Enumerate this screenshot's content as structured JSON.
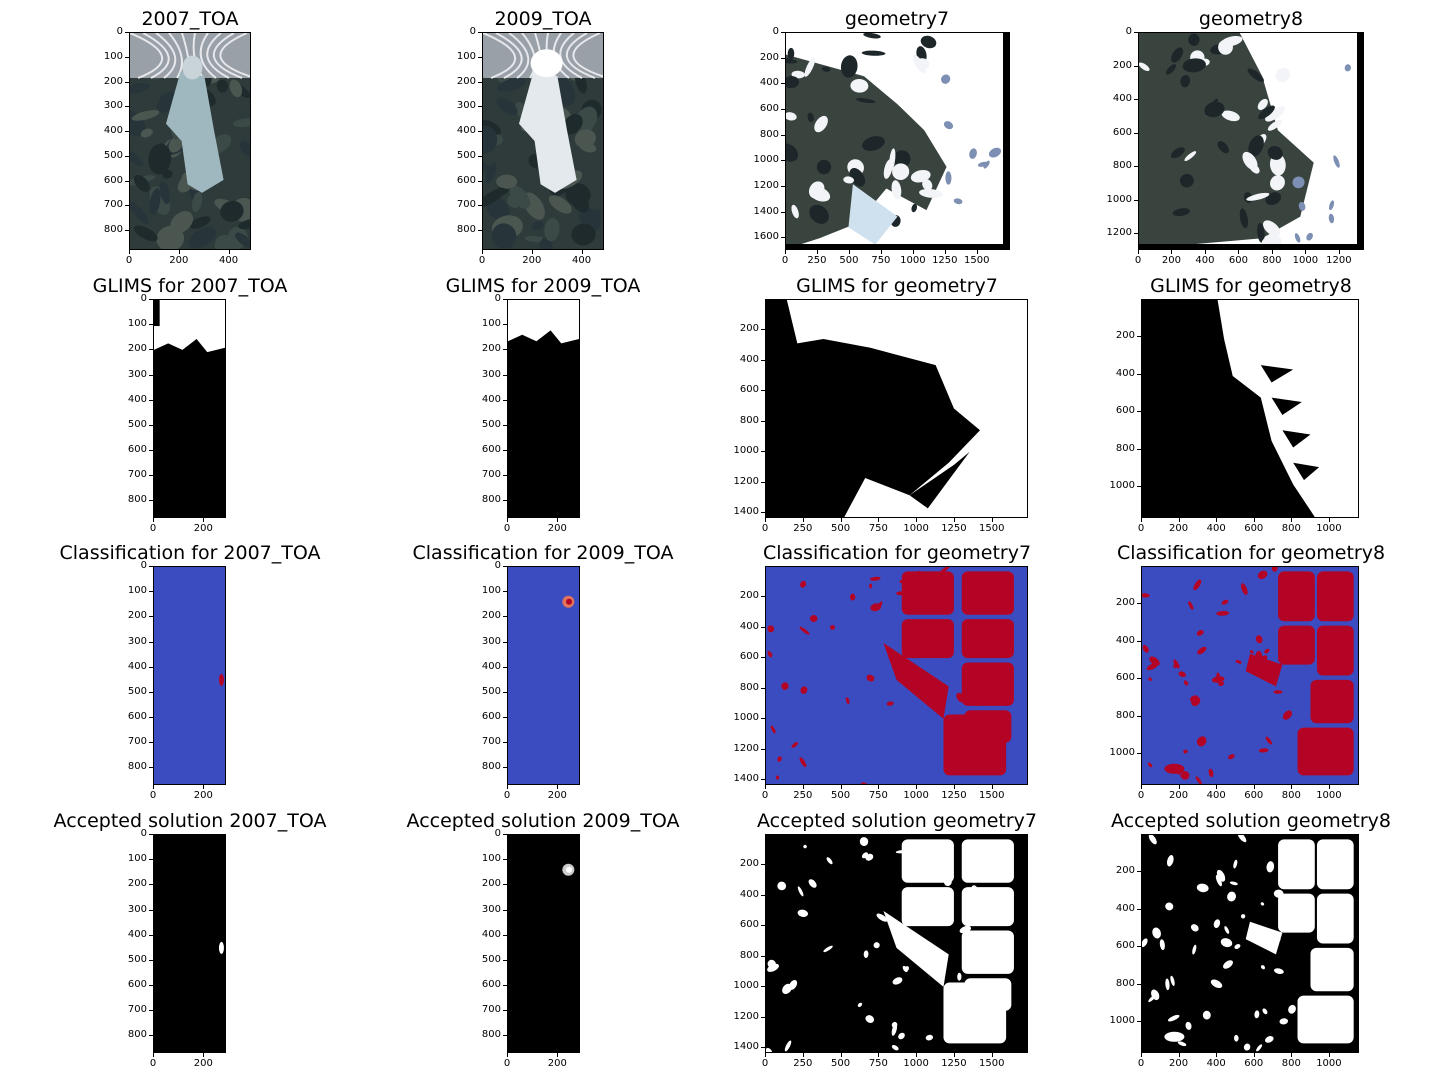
{
  "colors": {
    "class_blue": "#3b4cc0",
    "class_red": "#b40426",
    "mask_black": "#000000",
    "mask_white": "#ffffff"
  },
  "chart_data": [
    {
      "id": "p11",
      "type": "heatmap",
      "kind": "rgb-ice",
      "title": "2007_TOA",
      "xticks": [
        "0",
        "200",
        "400"
      ],
      "yticks": [
        "0",
        "100",
        "200",
        "300",
        "400",
        "500",
        "600",
        "700",
        "800"
      ],
      "xlim": [
        0,
        490
      ],
      "ylim": [
        880,
        0
      ]
    },
    {
      "id": "p12",
      "type": "heatmap",
      "kind": "rgb-ice-bright",
      "title": "2009_TOA",
      "xticks": [
        "0",
        "200",
        "400"
      ],
      "yticks": [
        "0",
        "100",
        "200",
        "300",
        "400",
        "500",
        "600",
        "700",
        "800"
      ],
      "xlim": [
        0,
        490
      ],
      "ylim": [
        880,
        0
      ]
    },
    {
      "id": "p13",
      "type": "heatmap",
      "kind": "rgb-snow",
      "title": "geometry7",
      "xticks": [
        "0",
        "250",
        "500",
        "750",
        "1000",
        "1250",
        "1500"
      ],
      "yticks": [
        "0",
        "200",
        "400",
        "600",
        "800",
        "1000",
        "1200",
        "1400",
        "1600"
      ],
      "xlim": [
        0,
        1760
      ],
      "ylim": [
        1700,
        0
      ]
    },
    {
      "id": "p14",
      "type": "heatmap",
      "kind": "rgb-snow-2",
      "title": "geometry8",
      "xticks": [
        "0",
        "200",
        "400",
        "600",
        "800",
        "1000",
        "1200"
      ],
      "yticks": [
        "0",
        "200",
        "400",
        "600",
        "800",
        "1000",
        "1200"
      ],
      "xlim": [
        0,
        1350
      ],
      "ylim": [
        1300,
        0
      ]
    },
    {
      "id": "p21",
      "type": "heatmap",
      "kind": "glims-top",
      "title": "GLIMS for 2007_TOA",
      "xticks": [
        "0",
        "200"
      ],
      "yticks": [
        "0",
        "100",
        "200",
        "300",
        "400",
        "500",
        "600",
        "700",
        "800"
      ],
      "xlim": [
        0,
        290
      ],
      "ylim": [
        870,
        0
      ]
    },
    {
      "id": "p22",
      "type": "heatmap",
      "kind": "glims-top2",
      "title": "GLIMS for 2009_TOA",
      "xticks": [
        "0",
        "200"
      ],
      "yticks": [
        "0",
        "100",
        "200",
        "300",
        "400",
        "500",
        "600",
        "700",
        "800"
      ],
      "xlim": [
        0,
        290
      ],
      "ylim": [
        870,
        0
      ]
    },
    {
      "id": "p23",
      "type": "heatmap",
      "kind": "glims-g7",
      "title": "GLIMS for geometry7",
      "xticks": [
        "0",
        "250",
        "500",
        "750",
        "1000",
        "1250",
        "1500"
      ],
      "yticks": [
        "200",
        "400",
        "600",
        "800",
        "1000",
        "1200",
        "1400"
      ],
      "xlim": [
        0,
        1740
      ],
      "ylim": [
        1440,
        0
      ]
    },
    {
      "id": "p24",
      "type": "heatmap",
      "kind": "glims-g8",
      "title": "GLIMS for geometry8",
      "xticks": [
        "0",
        "200",
        "400",
        "600",
        "800",
        "1000"
      ],
      "yticks": [
        "200",
        "400",
        "600",
        "800",
        "1000"
      ],
      "xlim": [
        0,
        1160
      ],
      "ylim": [
        1170,
        0
      ]
    },
    {
      "id": "p31",
      "type": "heatmap",
      "kind": "class-small",
      "title": "Classification for 2007_TOA",
      "xticks": [
        "0",
        "200"
      ],
      "yticks": [
        "0",
        "100",
        "200",
        "300",
        "400",
        "500",
        "600",
        "700",
        "800"
      ],
      "xlim": [
        0,
        290
      ],
      "ylim": [
        870,
        0
      ]
    },
    {
      "id": "p32",
      "type": "heatmap",
      "kind": "class-small2",
      "title": "Classification for 2009_TOA",
      "xticks": [
        "0",
        "200"
      ],
      "yticks": [
        "0",
        "100",
        "200",
        "300",
        "400",
        "500",
        "600",
        "700",
        "800"
      ],
      "xlim": [
        0,
        290
      ],
      "ylim": [
        870,
        0
      ]
    },
    {
      "id": "p33",
      "type": "heatmap",
      "kind": "class-g7",
      "title": "Classification for geometry7",
      "xticks": [
        "0",
        "250",
        "500",
        "750",
        "1000",
        "1250",
        "1500"
      ],
      "yticks": [
        "200",
        "400",
        "600",
        "800",
        "1000",
        "1200",
        "1400"
      ],
      "xlim": [
        0,
        1740
      ],
      "ylim": [
        1440,
        0
      ]
    },
    {
      "id": "p34",
      "type": "heatmap",
      "kind": "class-g8",
      "title": "Classification for geometry8",
      "xticks": [
        "0",
        "200",
        "400",
        "600",
        "800",
        "1000"
      ],
      "yticks": [
        "200",
        "400",
        "600",
        "800",
        "1000"
      ],
      "xlim": [
        0,
        1160
      ],
      "ylim": [
        1170,
        0
      ]
    },
    {
      "id": "p41",
      "type": "heatmap",
      "kind": "acc-small",
      "title": "Accepted solution 2007_TOA",
      "xticks": [
        "0",
        "200"
      ],
      "yticks": [
        "0",
        "100",
        "200",
        "300",
        "400",
        "500",
        "600",
        "700",
        "800"
      ],
      "xlim": [
        0,
        290
      ],
      "ylim": [
        870,
        0
      ]
    },
    {
      "id": "p42",
      "type": "heatmap",
      "kind": "acc-small2",
      "title": "Accepted solution 2009_TOA",
      "xticks": [
        "0",
        "200"
      ],
      "yticks": [
        "0",
        "100",
        "200",
        "300",
        "400",
        "500",
        "600",
        "700",
        "800"
      ],
      "xlim": [
        0,
        290
      ],
      "ylim": [
        870,
        0
      ]
    },
    {
      "id": "p43",
      "type": "heatmap",
      "kind": "acc-g7",
      "title": "Accepted solution geometry7",
      "xticks": [
        "0",
        "250",
        "500",
        "750",
        "1000",
        "1250",
        "1500"
      ],
      "yticks": [
        "200",
        "400",
        "600",
        "800",
        "1000",
        "1200",
        "1400"
      ],
      "xlim": [
        0,
        1740
      ],
      "ylim": [
        1440,
        0
      ]
    },
    {
      "id": "p44",
      "type": "heatmap",
      "kind": "acc-g8",
      "title": "Accepted solution geometry8",
      "xticks": [
        "0",
        "200",
        "400",
        "600",
        "800",
        "1000"
      ],
      "yticks": [
        "200",
        "400",
        "600",
        "800",
        "1000"
      ],
      "xlim": [
        0,
        1160
      ],
      "ylim": [
        1170,
        0
      ]
    }
  ]
}
